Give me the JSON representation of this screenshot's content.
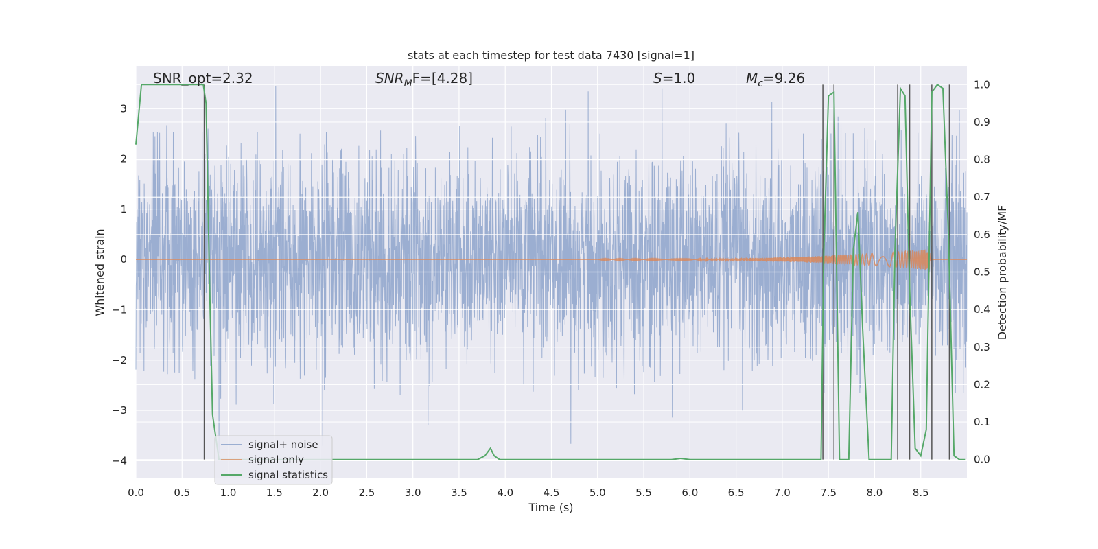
{
  "chart_data": {
    "type": "line",
    "title": "stats at each timestep for test data 7430 [signal=1]",
    "xlabel": "Time (s)",
    "ylabel": "Whitened strain",
    "ylabel_right": "Detection probability/MF",
    "xlim": [
      0.0,
      9.0
    ],
    "ylim": [
      -4.35,
      3.85
    ],
    "ylim_right": [
      -0.05,
      1.05
    ],
    "x_ticks": [
      "0.0",
      "0.5",
      "1.0",
      "1.5",
      "2.0",
      "2.5",
      "3.0",
      "3.5",
      "4.0",
      "4.5",
      "5.0",
      "5.5",
      "6.0",
      "6.5",
      "7.0",
      "7.5",
      "8.0",
      "8.5"
    ],
    "x_tick_values": [
      0,
      0.5,
      1,
      1.5,
      2,
      2.5,
      3,
      3.5,
      4,
      4.5,
      5,
      5.5,
      6,
      6.5,
      7,
      7.5,
      8,
      8.5
    ],
    "y_ticks": [
      "−4",
      "−3",
      "−2",
      "−1",
      "0",
      "1",
      "2",
      "3"
    ],
    "y_tick_values": [
      -4,
      -3,
      -2,
      -1,
      0,
      1,
      2,
      3
    ],
    "y_ticks_right": [
      "0.0",
      "0.1",
      "0.2",
      "0.3",
      "0.4",
      "0.5",
      "0.6",
      "0.7",
      "0.8",
      "0.9",
      "1.0"
    ],
    "y_tick_values_right": [
      0,
      0.1,
      0.2,
      0.3,
      0.4,
      0.5,
      0.6,
      0.7,
      0.8,
      0.9,
      1.0
    ],
    "grid": true,
    "legend_placement": "lower-left",
    "annotations": {
      "snr_opt": "SNR_opt=2.32",
      "snr_mf_main": "SNR",
      "snr_mf_sub": "M",
      "snr_mf_rest": "F=[4.28]",
      "s_main": "S",
      "s_rest": "=1.0",
      "mc_main": "M",
      "mc_sub": "c",
      "mc_rest": "=9.26"
    },
    "series": [
      {
        "name": "signal+ noise",
        "color": "#4c72b0",
        "envelope_sigma": 1.0,
        "x_range": [
          0.0,
          9.0
        ],
        "axis": "left"
      },
      {
        "name": "signal only",
        "color": "#dd8452",
        "axis": "left",
        "chirp": {
          "start": 5.0,
          "end": 8.65,
          "max_amplitude": 0.2,
          "peak": 8.6
        }
      },
      {
        "name": "signal statistics",
        "color": "#55a868",
        "axis": "right",
        "x": [
          0.0,
          0.06,
          0.12,
          0.5,
          0.7,
          0.73,
          0.76,
          0.8,
          0.83,
          0.9,
          1.0,
          2.0,
          3.0,
          3.7,
          3.78,
          3.84,
          3.88,
          3.94,
          4.0,
          4.5,
          5.0,
          5.5,
          5.8,
          5.9,
          6.0,
          7.0,
          7.42,
          7.45,
          7.5,
          7.56,
          7.62,
          7.68,
          7.72,
          7.77,
          7.82,
          7.87,
          7.94,
          8.0,
          8.1,
          8.18,
          8.22,
          8.28,
          8.33,
          8.38,
          8.44,
          8.5,
          8.56,
          8.62,
          8.68,
          8.74,
          8.8,
          8.86,
          8.92,
          8.98
        ],
        "y": [
          0.84,
          1.0,
          1.0,
          1.0,
          1.0,
          1.0,
          0.95,
          0.45,
          0.12,
          0.0,
          0.0,
          0.0,
          0.0,
          0.0,
          0.01,
          0.03,
          0.01,
          0.0,
          0.0,
          0.0,
          0.0,
          0.0,
          0.0,
          0.003,
          0.0,
          0.0,
          0.0,
          0.55,
          0.97,
          0.98,
          0.0,
          0.0,
          0.0,
          0.56,
          0.66,
          0.35,
          0.0,
          0.0,
          0.0,
          0.0,
          0.55,
          0.99,
          0.97,
          0.45,
          0.03,
          0.01,
          0.08,
          0.98,
          1.0,
          0.99,
          0.6,
          0.01,
          0.0,
          0.0
        ]
      }
    ],
    "vertical_markers": [
      0.74,
      7.44,
      7.56,
      8.25,
      8.38,
      8.62,
      8.81
    ]
  }
}
